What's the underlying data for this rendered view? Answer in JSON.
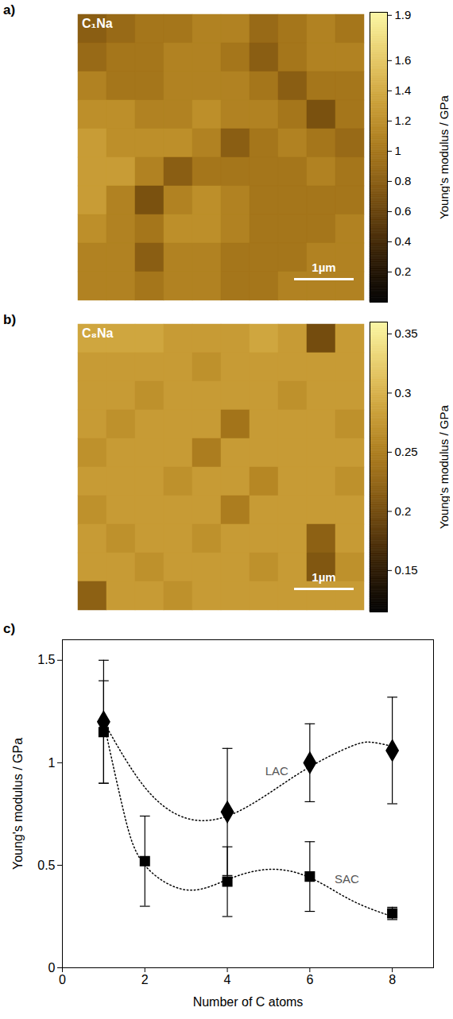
{
  "chart_data": [
    {
      "type": "heatmap",
      "panel": "a)",
      "title": "C₁Na",
      "scale_bar": "1µm",
      "colorbar_label": "Young's modulus / GPa",
      "colorbar_lim": [
        0,
        1.92
      ],
      "colorbar_ticks": [
        1.9,
        1.6,
        1.4,
        1.2,
        1,
        0.8,
        0.6,
        0.4,
        0.2
      ],
      "cells": [
        [
          0.8,
          0.9,
          1.0,
          1.0,
          1.1,
          1.1,
          0.9,
          1.0,
          1.1,
          1.0
        ],
        [
          0.9,
          1.0,
          1.0,
          1.1,
          1.1,
          1.0,
          0.8,
          1.0,
          1.1,
          1.1
        ],
        [
          1.1,
          1.0,
          1.0,
          1.1,
          1.1,
          1.1,
          1.0,
          0.8,
          1.0,
          1.0
        ],
        [
          1.2,
          1.2,
          1.1,
          1.1,
          1.2,
          1.1,
          1.1,
          1.0,
          0.7,
          1.0
        ],
        [
          1.3,
          1.2,
          1.2,
          1.2,
          1.1,
          0.8,
          1.0,
          1.1,
          1.0,
          0.9
        ],
        [
          1.3,
          1.3,
          1.1,
          0.8,
          1.0,
          1.0,
          1.0,
          1.0,
          1.1,
          1.0
        ],
        [
          1.3,
          1.1,
          0.7,
          1.1,
          1.2,
          1.1,
          1.0,
          1.0,
          1.0,
          1.0
        ],
        [
          1.2,
          1.1,
          1.0,
          1.2,
          1.2,
          1.1,
          1.0,
          1.0,
          1.0,
          1.1
        ],
        [
          1.1,
          1.1,
          0.8,
          1.1,
          1.1,
          1.0,
          1.0,
          1.0,
          1.1,
          1.1
        ],
        [
          1.1,
          1.1,
          1.0,
          1.1,
          1.1,
          1.0,
          1.0,
          1.1,
          1.1,
          1.1
        ]
      ]
    },
    {
      "type": "heatmap",
      "panel": "b)",
      "title": "C₈Na",
      "scale_bar": "1µm",
      "colorbar_label": "Young's modulus / GPa",
      "colorbar_lim": [
        0.115,
        0.36
      ],
      "colorbar_ticks": [
        0.35,
        0.3,
        0.25,
        0.2,
        0.15
      ],
      "cells": [
        [
          0.29,
          0.29,
          0.29,
          0.28,
          0.28,
          0.28,
          0.29,
          0.28,
          0.2,
          0.28
        ],
        [
          0.28,
          0.28,
          0.28,
          0.28,
          0.27,
          0.28,
          0.28,
          0.28,
          0.28,
          0.28
        ],
        [
          0.28,
          0.28,
          0.27,
          0.28,
          0.28,
          0.28,
          0.28,
          0.27,
          0.28,
          0.28
        ],
        [
          0.28,
          0.27,
          0.28,
          0.28,
          0.28,
          0.24,
          0.28,
          0.28,
          0.28,
          0.27
        ],
        [
          0.27,
          0.28,
          0.28,
          0.28,
          0.25,
          0.28,
          0.28,
          0.28,
          0.28,
          0.28
        ],
        [
          0.28,
          0.28,
          0.28,
          0.27,
          0.28,
          0.28,
          0.26,
          0.28,
          0.28,
          0.27
        ],
        [
          0.27,
          0.28,
          0.28,
          0.28,
          0.28,
          0.25,
          0.28,
          0.28,
          0.28,
          0.28
        ],
        [
          0.28,
          0.27,
          0.28,
          0.28,
          0.27,
          0.28,
          0.28,
          0.28,
          0.22,
          0.28
        ],
        [
          0.28,
          0.28,
          0.27,
          0.28,
          0.28,
          0.28,
          0.27,
          0.28,
          0.21,
          0.27
        ],
        [
          0.22,
          0.28,
          0.28,
          0.27,
          0.28,
          0.28,
          0.28,
          0.28,
          0.28,
          0.28
        ]
      ]
    },
    {
      "type": "scatter",
      "panel": "c)",
      "xlabel": "Number of C atoms",
      "ylabel": "Young's modulus / GPa",
      "xlim": [
        0,
        9
      ],
      "ylim": [
        0,
        1.6
      ],
      "xticks": [
        0,
        2,
        4,
        6,
        8
      ],
      "yticks": [
        0,
        0.5,
        1,
        1.5
      ],
      "grid": false,
      "series": [
        {
          "name": "LAC",
          "color": "#000000",
          "marker": "diamond",
          "x": [
            1,
            4,
            6,
            8
          ],
          "values": [
            1.2,
            0.76,
            1.0,
            1.06
          ],
          "errors": [
            0.3,
            0.31,
            0.19,
            0.26
          ],
          "fit": {
            "x": [
              1,
              2,
              3,
              4,
              5,
              6,
              7,
              7.5,
              8
            ],
            "y": [
              1.2,
              0.88,
              0.73,
              0.74,
              0.85,
              0.98,
              1.08,
              1.1,
              1.08
            ]
          },
          "label_x": 5.2,
          "label_y": 0.96
        },
        {
          "name": "SAC",
          "color": "#000000",
          "marker": "square",
          "x": [
            1,
            2,
            4,
            6,
            8
          ],
          "values": [
            1.15,
            0.52,
            0.42,
            0.445,
            0.265
          ],
          "errors": [
            0.25,
            0.22,
            0.17,
            0.17,
            0.03
          ],
          "fit": {
            "x": [
              1,
              1.5,
              2,
              3,
              4,
              5,
              6,
              7,
              8
            ],
            "y": [
              1.2,
              0.75,
              0.5,
              0.38,
              0.43,
              0.48,
              0.44,
              0.33,
              0.25
            ]
          },
          "label_x": 6.9,
          "label_y": 0.43
        }
      ]
    }
  ]
}
